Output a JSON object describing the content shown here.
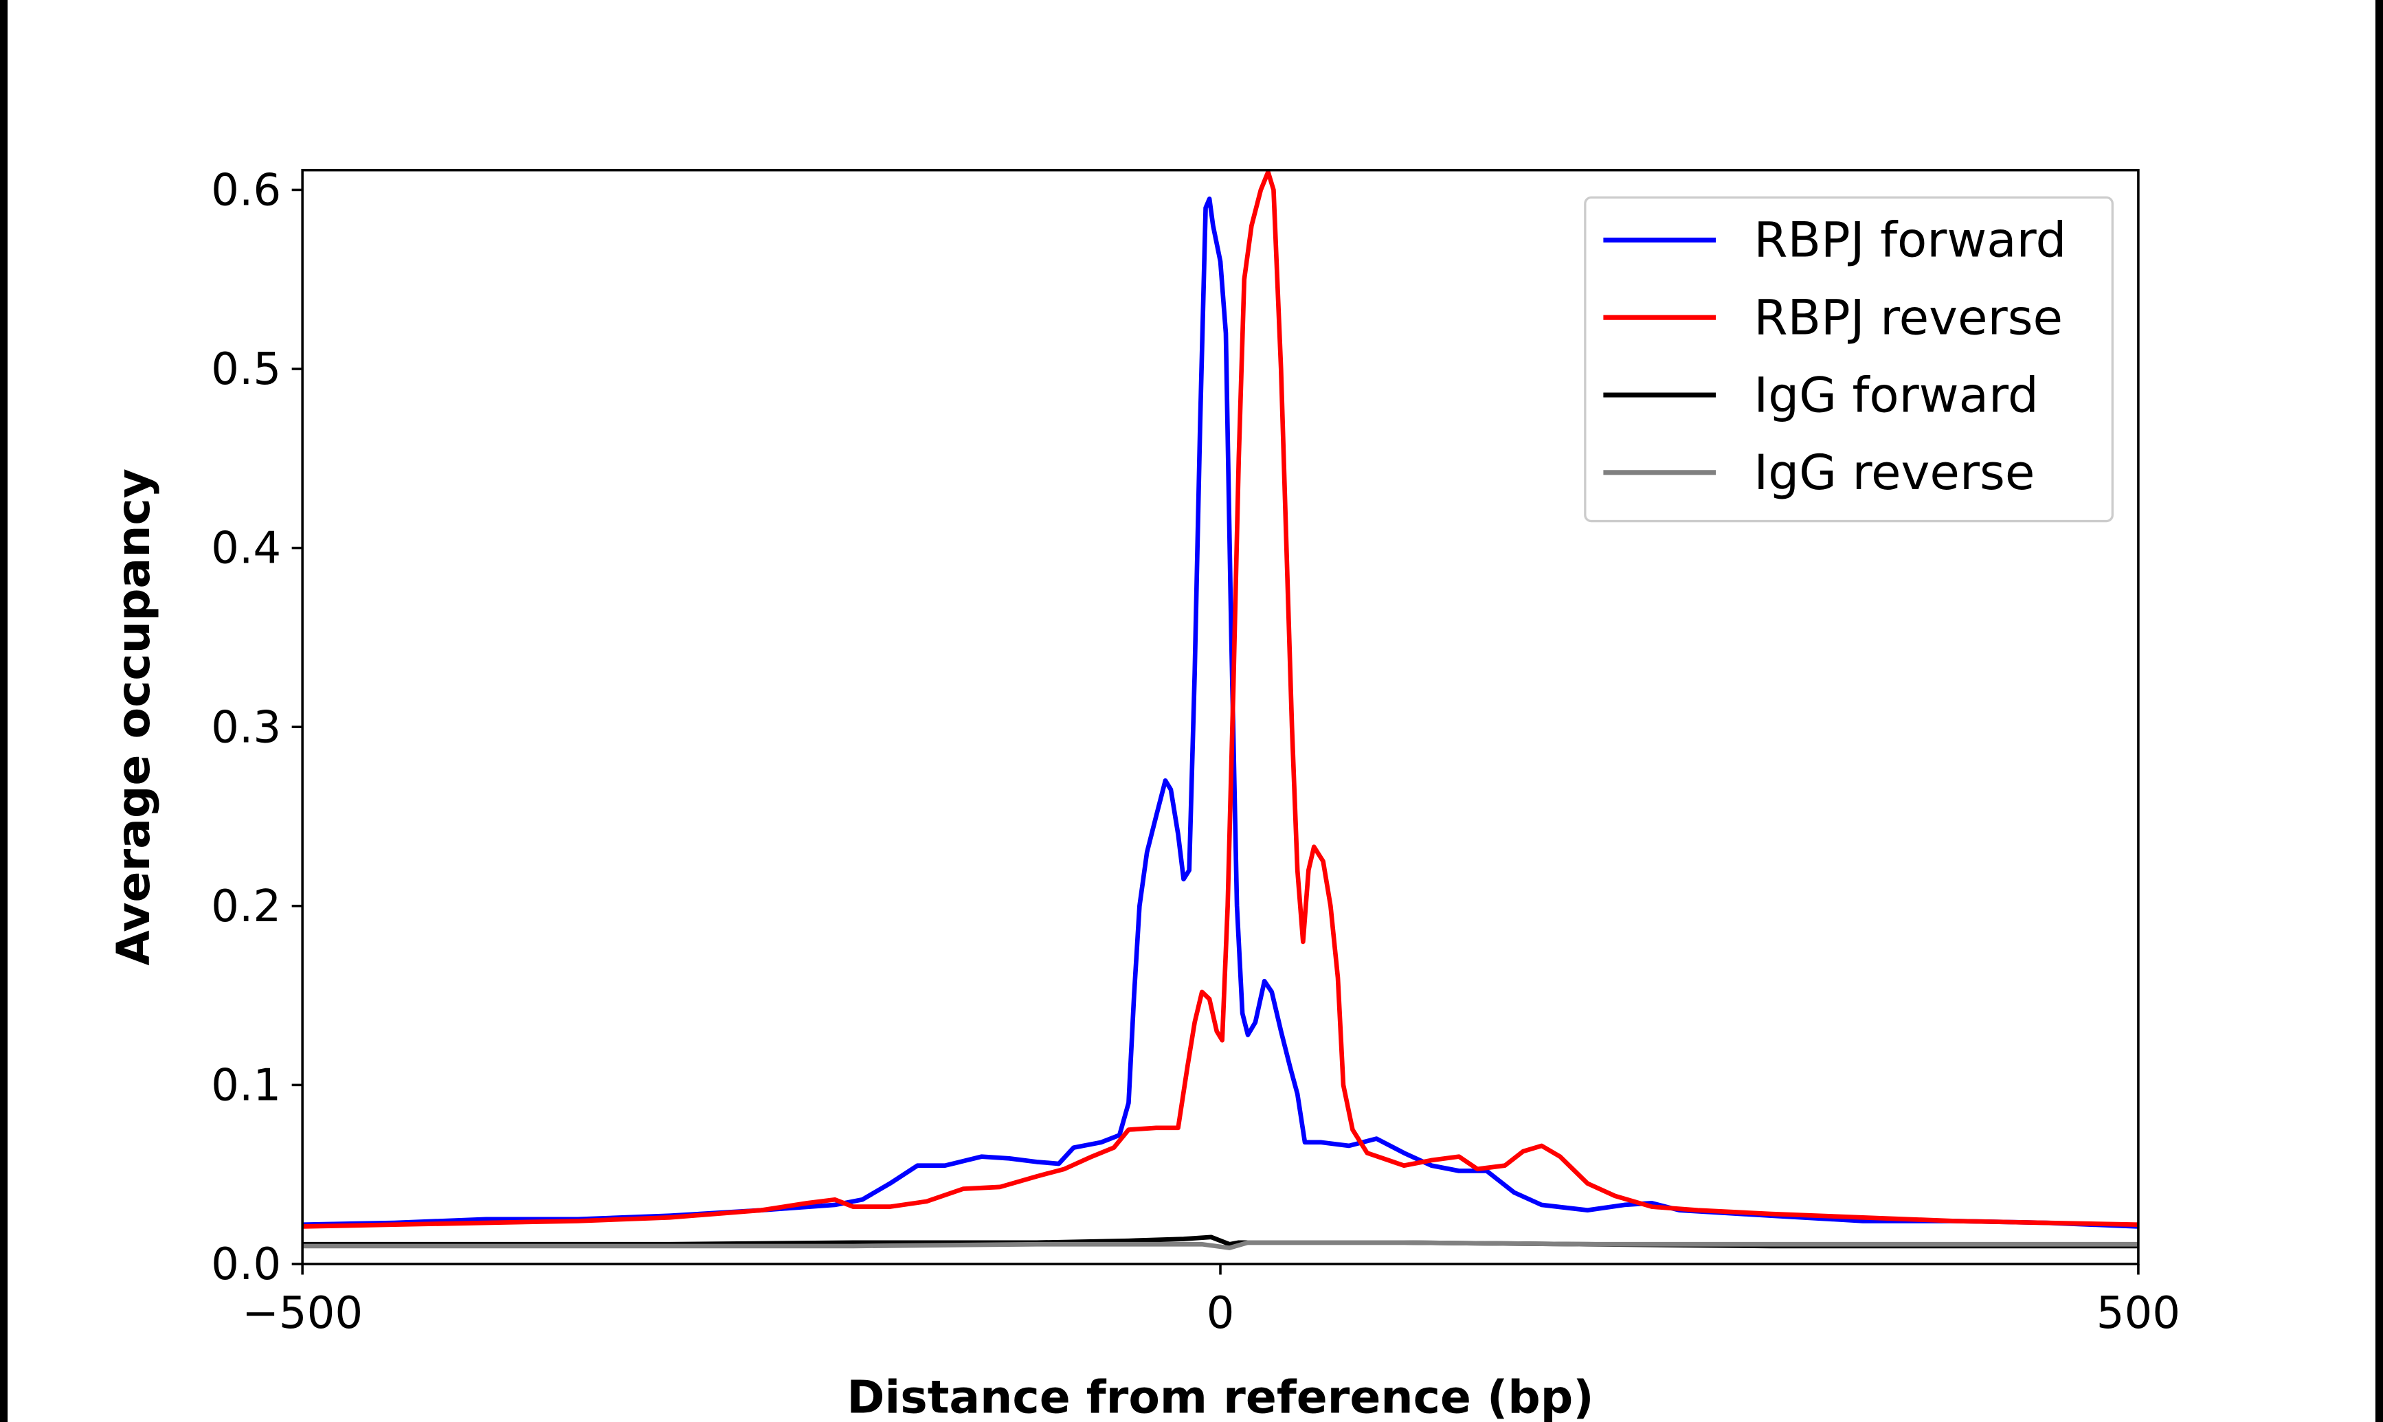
{
  "chart_data": {
    "type": "line",
    "title": "",
    "xlabel": "Distance from reference (bp)",
    "ylabel": "Average occupancy",
    "xlim": [
      -500,
      500
    ],
    "ylim": [
      0,
      0.61
    ],
    "xticks": [
      -500,
      0,
      500
    ],
    "xtick_labels": [
      "−500",
      "0",
      "500"
    ],
    "yticks": [
      0.0,
      0.1,
      0.2,
      0.3,
      0.4,
      0.5,
      0.6
    ],
    "ytick_labels": [
      "0.0",
      "0.1",
      "0.2",
      "0.3",
      "0.4",
      "0.5",
      "0.6"
    ],
    "grid": false,
    "legend_position": "top-right",
    "series": [
      {
        "name": "RBPJ forward",
        "color": "#0000ff",
        "points": [
          [
            -500,
            0.022
          ],
          [
            -450,
            0.023
          ],
          [
            -400,
            0.025
          ],
          [
            -350,
            0.025
          ],
          [
            -300,
            0.027
          ],
          [
            -250,
            0.03
          ],
          [
            -210,
            0.033
          ],
          [
            -195,
            0.036
          ],
          [
            -180,
            0.045
          ],
          [
            -165,
            0.055
          ],
          [
            -150,
            0.055
          ],
          [
            -130,
            0.06
          ],
          [
            -115,
            0.059
          ],
          [
            -100,
            0.057
          ],
          [
            -88,
            0.056
          ],
          [
            -80,
            0.065
          ],
          [
            -65,
            0.068
          ],
          [
            -55,
            0.072
          ],
          [
            -50,
            0.09
          ],
          [
            -47,
            0.15
          ],
          [
            -44,
            0.2
          ],
          [
            -40,
            0.23
          ],
          [
            -35,
            0.25
          ],
          [
            -30,
            0.27
          ],
          [
            -27,
            0.265
          ],
          [
            -23,
            0.24
          ],
          [
            -20,
            0.215
          ],
          [
            -17,
            0.22
          ],
          [
            -14,
            0.33
          ],
          [
            -11,
            0.47
          ],
          [
            -8,
            0.59
          ],
          [
            -6,
            0.595
          ],
          [
            -4,
            0.58
          ],
          [
            0,
            0.56
          ],
          [
            3,
            0.52
          ],
          [
            6,
            0.35
          ],
          [
            9,
            0.2
          ],
          [
            12,
            0.14
          ],
          [
            15,
            0.128
          ],
          [
            19,
            0.135
          ],
          [
            24,
            0.158
          ],
          [
            28,
            0.152
          ],
          [
            33,
            0.13
          ],
          [
            38,
            0.11
          ],
          [
            42,
            0.095
          ],
          [
            46,
            0.068
          ],
          [
            55,
            0.068
          ],
          [
            70,
            0.066
          ],
          [
            85,
            0.07
          ],
          [
            100,
            0.062
          ],
          [
            115,
            0.055
          ],
          [
            130,
            0.052
          ],
          [
            145,
            0.052
          ],
          [
            160,
            0.04
          ],
          [
            175,
            0.033
          ],
          [
            200,
            0.03
          ],
          [
            220,
            0.033
          ],
          [
            235,
            0.034
          ],
          [
            250,
            0.03
          ],
          [
            300,
            0.027
          ],
          [
            350,
            0.024
          ],
          [
            400,
            0.024
          ],
          [
            450,
            0.023
          ],
          [
            500,
            0.021
          ]
        ]
      },
      {
        "name": "RBPJ reverse",
        "color": "#ff0000",
        "points": [
          [
            -500,
            0.021
          ],
          [
            -450,
            0.022
          ],
          [
            -400,
            0.023
          ],
          [
            -350,
            0.024
          ],
          [
            -300,
            0.026
          ],
          [
            -250,
            0.03
          ],
          [
            -225,
            0.034
          ],
          [
            -210,
            0.036
          ],
          [
            -200,
            0.032
          ],
          [
            -180,
            0.032
          ],
          [
            -160,
            0.035
          ],
          [
            -140,
            0.042
          ],
          [
            -120,
            0.043
          ],
          [
            -100,
            0.049
          ],
          [
            -85,
            0.053
          ],
          [
            -70,
            0.06
          ],
          [
            -58,
            0.065
          ],
          [
            -50,
            0.075
          ],
          [
            -35,
            0.076
          ],
          [
            -23,
            0.076
          ],
          [
            -18,
            0.11
          ],
          [
            -14,
            0.135
          ],
          [
            -10,
            0.152
          ],
          [
            -6,
            0.148
          ],
          [
            -2,
            0.13
          ],
          [
            1,
            0.125
          ],
          [
            4,
            0.2
          ],
          [
            7,
            0.32
          ],
          [
            10,
            0.45
          ],
          [
            13,
            0.55
          ],
          [
            17,
            0.58
          ],
          [
            22,
            0.6
          ],
          [
            26,
            0.61
          ],
          [
            29,
            0.6
          ],
          [
            33,
            0.5
          ],
          [
            36,
            0.4
          ],
          [
            39,
            0.3
          ],
          [
            42,
            0.22
          ],
          [
            45,
            0.18
          ],
          [
            48,
            0.22
          ],
          [
            51,
            0.233
          ],
          [
            56,
            0.225
          ],
          [
            60,
            0.2
          ],
          [
            64,
            0.16
          ],
          [
            67,
            0.1
          ],
          [
            72,
            0.075
          ],
          [
            80,
            0.062
          ],
          [
            100,
            0.055
          ],
          [
            115,
            0.058
          ],
          [
            130,
            0.06
          ],
          [
            140,
            0.053
          ],
          [
            155,
            0.055
          ],
          [
            165,
            0.063
          ],
          [
            175,
            0.066
          ],
          [
            185,
            0.06
          ],
          [
            200,
            0.045
          ],
          [
            215,
            0.038
          ],
          [
            235,
            0.032
          ],
          [
            260,
            0.03
          ],
          [
            300,
            0.028
          ],
          [
            350,
            0.026
          ],
          [
            400,
            0.024
          ],
          [
            450,
            0.023
          ],
          [
            500,
            0.022
          ]
        ]
      },
      {
        "name": "IgG forward",
        "color": "#000000",
        "points": [
          [
            -500,
            0.011
          ],
          [
            -400,
            0.011
          ],
          [
            -300,
            0.011
          ],
          [
            -200,
            0.012
          ],
          [
            -100,
            0.012
          ],
          [
            -50,
            0.013
          ],
          [
            -20,
            0.014
          ],
          [
            -5,
            0.015
          ],
          [
            5,
            0.011
          ],
          [
            10,
            0.012
          ],
          [
            50,
            0.012
          ],
          [
            100,
            0.012
          ],
          [
            200,
            0.011
          ],
          [
            300,
            0.01
          ],
          [
            400,
            0.01
          ],
          [
            500,
            0.01
          ]
        ]
      },
      {
        "name": "IgG reverse",
        "color": "#808080",
        "points": [
          [
            -500,
            0.01
          ],
          [
            -400,
            0.01
          ],
          [
            -300,
            0.01
          ],
          [
            -200,
            0.01
          ],
          [
            -100,
            0.011
          ],
          [
            -50,
            0.011
          ],
          [
            -10,
            0.011
          ],
          [
            5,
            0.009
          ],
          [
            15,
            0.012
          ],
          [
            50,
            0.012
          ],
          [
            100,
            0.012
          ],
          [
            200,
            0.011
          ],
          [
            300,
            0.011
          ],
          [
            400,
            0.011
          ],
          [
            500,
            0.011
          ]
        ]
      }
    ]
  }
}
